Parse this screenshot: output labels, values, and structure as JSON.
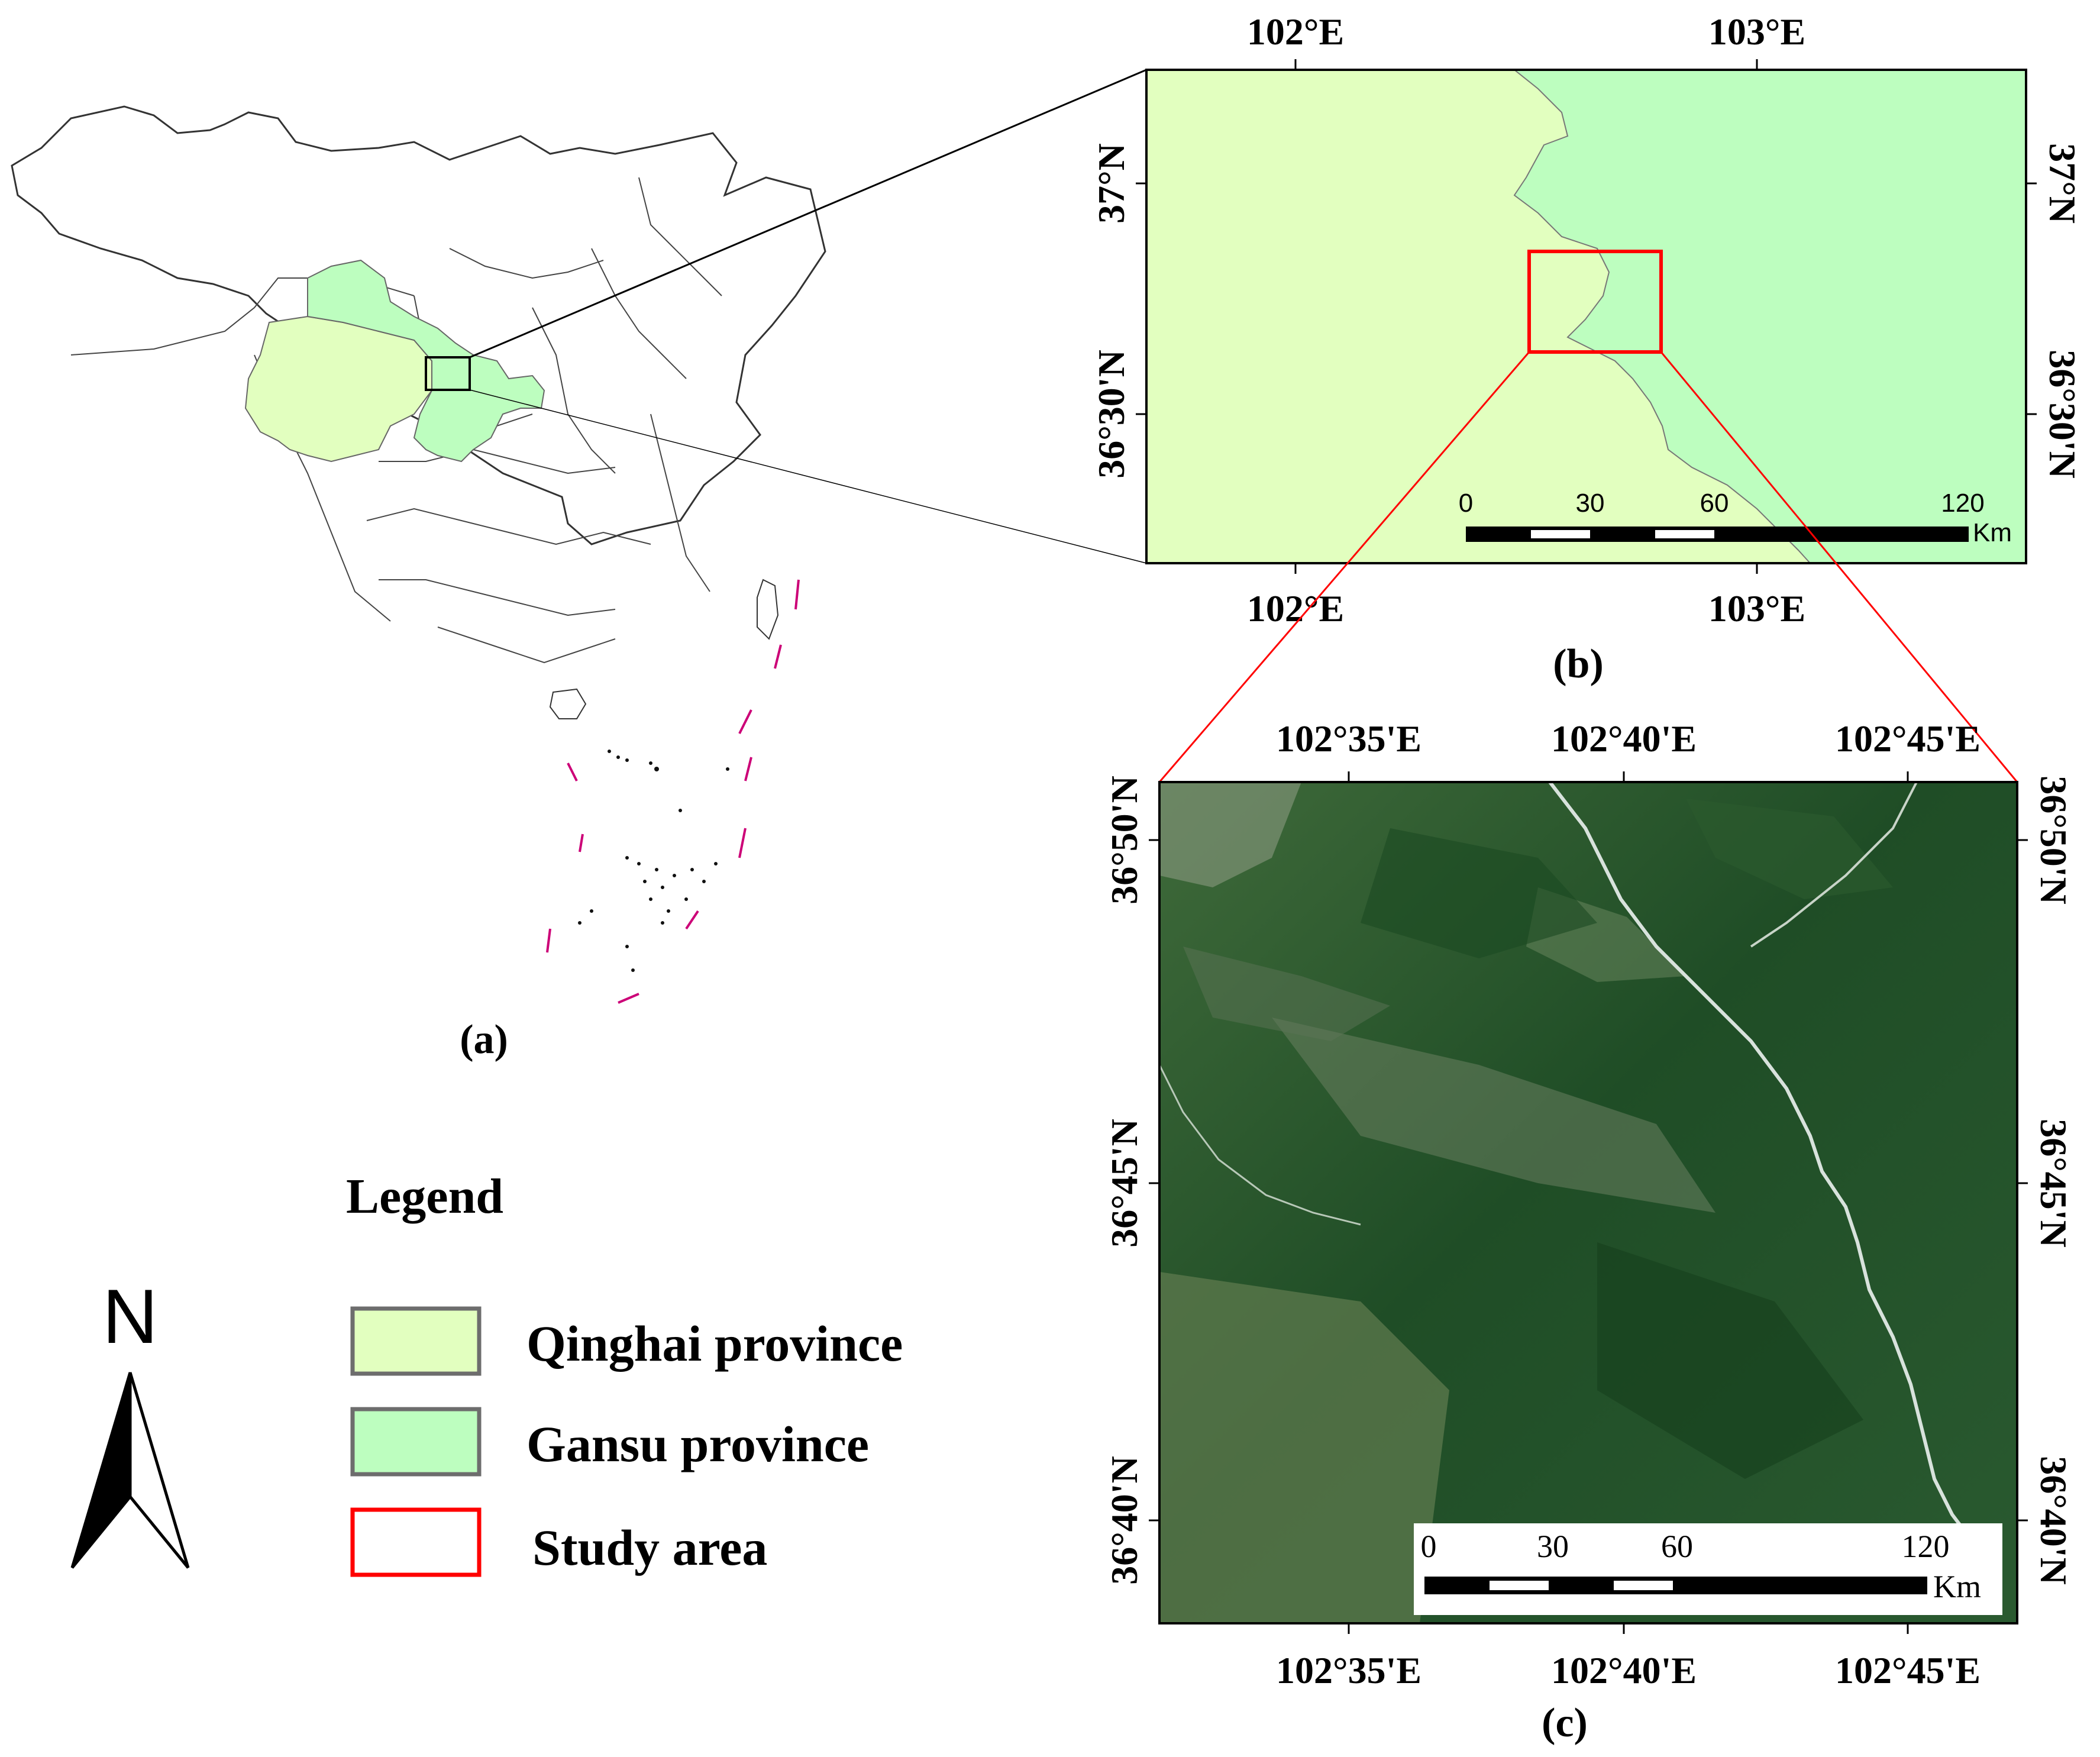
{
  "panels": {
    "a": "(a)",
    "b": "(b)",
    "c": "(c)"
  },
  "panel_b": {
    "top_ticks": [
      "102°E",
      "103°E"
    ],
    "bottom_ticks": [
      "102°E",
      "103°E"
    ],
    "left_ticks": [
      "37°N",
      "36°30'N"
    ],
    "right_ticks": [
      "37°N",
      "36°30'N"
    ],
    "scalebar": {
      "labels": [
        "0",
        "30",
        "60",
        "120"
      ],
      "unit": "Km"
    },
    "colors": {
      "qinghai": "#e2ffbf",
      "gansu": "#bdfebf"
    }
  },
  "panel_c": {
    "top_ticks": [
      "102°35'E",
      "102°40'E",
      "102°45'E"
    ],
    "bottom_ticks": [
      "102°35'E",
      "102°40'E",
      "102°45'E"
    ],
    "left_ticks": [
      "36°50'N",
      "36°45'N",
      "36°40'N"
    ],
    "right_ticks": [
      "36°50'N",
      "36°45'N",
      "36°40'N"
    ],
    "scalebar": {
      "labels": [
        "0",
        "30",
        "60",
        "120"
      ],
      "unit": "Km"
    }
  },
  "north_arrow": {
    "letter": "N"
  },
  "legend": {
    "title": "Legend",
    "items": [
      {
        "label": "Qinghai province",
        "fill": "#e2ffbf",
        "stroke": "#6d6d6d"
      },
      {
        "label": "Gansu province",
        "fill": "#bdfebf",
        "stroke": "#6d6d6d"
      },
      {
        "label": "Study area",
        "fill": "#ffffff",
        "stroke": "#ff0000"
      }
    ]
  },
  "colors": {
    "study_area": "#ff0000",
    "dash_line": "#cc0077"
  }
}
